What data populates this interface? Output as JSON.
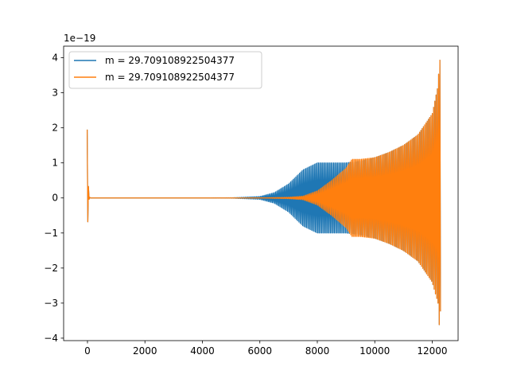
{
  "chart_data": {
    "type": "line",
    "title": "",
    "xlabel": "",
    "ylabel": "",
    "y_offset_label": "1e−19",
    "xlim": [
      -830,
      12900
    ],
    "ylim": [
      -4.07,
      4.33
    ],
    "x_ticks": [
      0,
      2000,
      4000,
      6000,
      8000,
      10000,
      12000
    ],
    "x_tick_labels": [
      "0",
      "2000",
      "4000",
      "6000",
      "8000",
      "10000",
      "12000"
    ],
    "y_ticks": [
      -4,
      -3,
      -2,
      -1,
      0,
      1,
      2,
      3,
      4
    ],
    "y_tick_labels": [
      "−4",
      "−3",
      "−2",
      "−1",
      "0",
      "1",
      "2",
      "3",
      "4"
    ],
    "grid": false,
    "legend_position": "upper-left",
    "series": [
      {
        "name": "m = 29.709108922504377",
        "color": "#1f77b4",
        "envelope_x": [
          -10,
          0,
          40,
          100,
          4000,
          5000,
          6000,
          6500,
          7000,
          7500,
          8000,
          8500,
          9000,
          9500,
          10000,
          10500,
          11000,
          11500,
          12000,
          12200,
          12250,
          12290
        ],
        "upper": [
          1.95,
          1.9,
          0.05,
          0.0,
          0.0,
          0.005,
          0.04,
          0.15,
          0.4,
          0.8,
          1.0,
          1.0,
          1.0,
          1.05,
          1.15,
          1.3,
          1.5,
          1.8,
          2.4,
          3.2,
          3.95,
          3.9
        ],
        "lower": [
          -1.0,
          -0.95,
          -0.05,
          0.0,
          0.0,
          -0.005,
          -0.04,
          -0.15,
          -0.4,
          -0.8,
          -1.0,
          -1.0,
          -1.0,
          -1.05,
          -1.15,
          -1.3,
          -1.5,
          -1.8,
          -2.4,
          -3.0,
          -3.7,
          -3.2
        ]
      },
      {
        "name": "m = 29.709108922504377",
        "color": "#ff7f0e",
        "envelope_x": [
          -10,
          0,
          40,
          100,
          4000,
          6000,
          7000,
          7500,
          8000,
          8500,
          9000,
          9200,
          9500,
          10000,
          10500,
          11000,
          11500,
          12000,
          12200,
          12250,
          12290
        ],
        "upper": [
          1.95,
          1.9,
          0.05,
          0.0,
          0.0,
          0.002,
          0.02,
          0.05,
          0.2,
          0.5,
          0.85,
          1.1,
          1.1,
          1.15,
          1.3,
          1.5,
          1.8,
          2.4,
          3.2,
          3.95,
          3.9
        ],
        "lower": [
          -1.0,
          -0.95,
          -0.05,
          0.0,
          0.0,
          -0.002,
          -0.02,
          -0.05,
          -0.2,
          -0.5,
          -0.85,
          -1.1,
          -1.1,
          -1.15,
          -1.3,
          -1.5,
          -1.8,
          -2.4,
          -3.0,
          -3.7,
          -3.2
        ]
      }
    ]
  }
}
